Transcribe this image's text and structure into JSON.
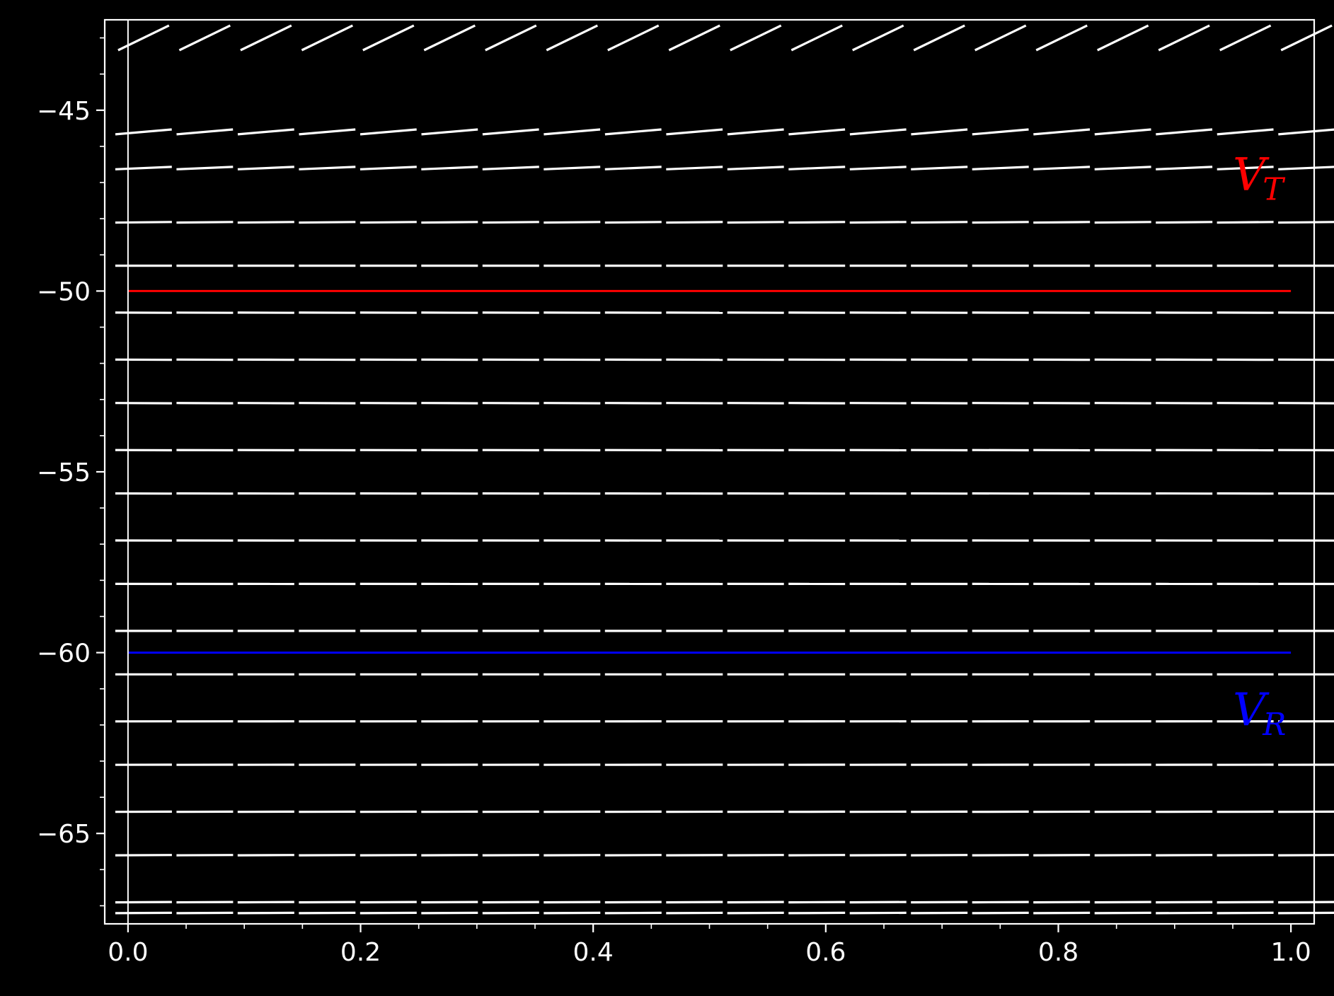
{
  "chart_data": {
    "type": "line",
    "title": "",
    "xlabel": "",
    "ylabel": "",
    "xlim": [
      -0.02,
      1.02
    ],
    "ylim": [
      -67.5,
      -42.5
    ],
    "x_ticks": [
      "0.0",
      "0.2",
      "0.4",
      "0.6",
      "0.8",
      "1.0"
    ],
    "x_tick_values": [
      0.0,
      0.2,
      0.4,
      0.6,
      0.8,
      1.0
    ],
    "y_ticks": [
      "−45",
      "−50",
      "−55",
      "−60",
      "−65"
    ],
    "y_tick_values": [
      -45,
      -50,
      -55,
      -60,
      -65
    ],
    "x_minor_step": 0.05,
    "y_minor_step": 1,
    "grid": false,
    "background": "#000000",
    "axis_color": "#ffffff",
    "slope_field": {
      "description": "direction field dV/dt = f(V)",
      "x_count": 20,
      "x_range": [
        0.0,
        1.0
      ],
      "v_values": [
        -43,
        -45.6,
        -46.6,
        -48.1,
        -49.3,
        -50.6,
        -51.9,
        -53.1,
        -54.4,
        -55.6,
        -56.9,
        -58.1,
        -59.4,
        -60.6,
        -61.9,
        -63.1,
        -64.4,
        -65.6,
        -66.9
      ],
      "lowest_v": -67.2,
      "color": "#ffffff"
    },
    "series": [
      {
        "name": "V_T",
        "label_main": "V",
        "label_sub": "T",
        "x": [
          0.0,
          1.0
        ],
        "values": [
          -50,
          -50
        ],
        "color": "#ff0000"
      },
      {
        "name": "V_R",
        "label_main": "V",
        "label_sub": "R",
        "x": [
          0.0,
          1.0
        ],
        "values": [
          -60,
          -60
        ],
        "color": "#0000ff"
      }
    ]
  }
}
